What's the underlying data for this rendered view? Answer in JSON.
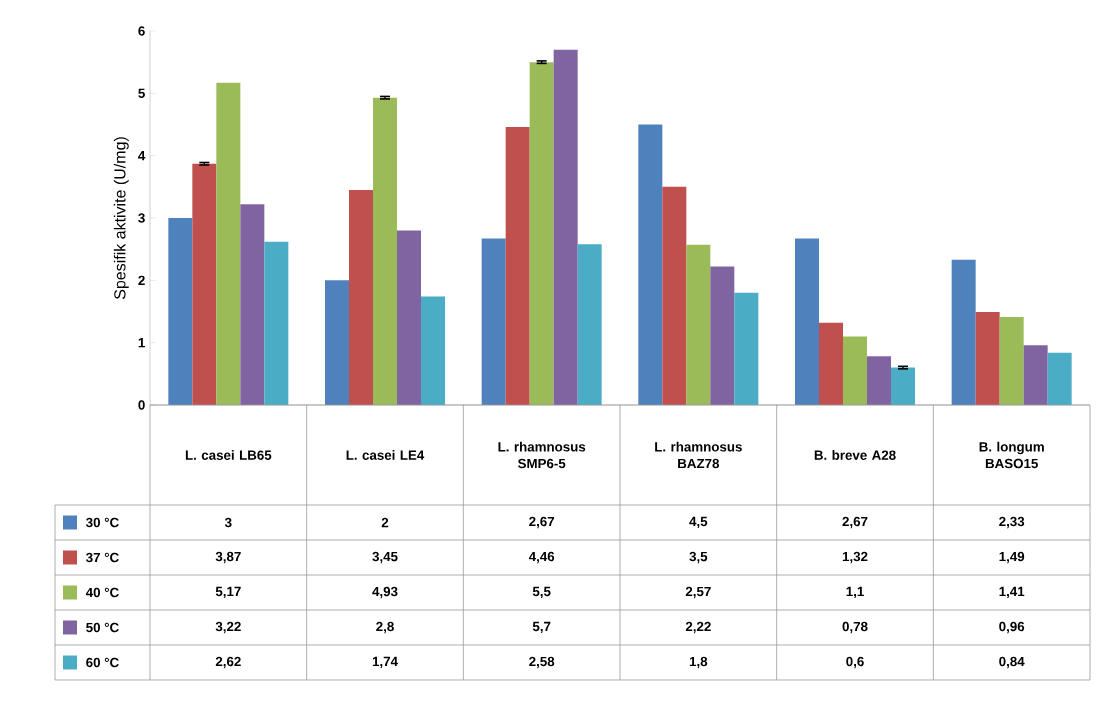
{
  "chart_data": {
    "type": "bar",
    "legend": "bottom",
    "ylabel": "Spesifik aktivite (U/mg)",
    "categories": [
      "L. casei LB65",
      "L. casei LE4",
      "L. rhamnosus SMP6-5",
      "L. rhamnosus BAZ78",
      "B. breve A28",
      "B. longum BASO15"
    ],
    "ylim": [
      0,
      6
    ],
    "yticks": [
      0,
      1,
      2,
      3,
      4,
      5,
      6
    ],
    "series": [
      {
        "name": "30 °C",
        "color": "#4f81bd",
        "values": [
          3,
          2,
          2.67,
          4.5,
          2.67,
          2.33
        ],
        "value_labels": [
          "3",
          "2",
          "2,67",
          "4,5",
          "2,67",
          "2,33"
        ]
      },
      {
        "name": "37 °C",
        "color": "#c0504d",
        "values": [
          3.87,
          3.45,
          4.46,
          3.5,
          1.32,
          1.49
        ],
        "value_labels": [
          "3,87",
          "3,45",
          "4,46",
          "3,5",
          "1,32",
          "1,49"
        ],
        "errors": [
          0.02,
          null,
          null,
          null,
          null,
          null
        ]
      },
      {
        "name": "40 °C",
        "color": "#9bbb59",
        "values": [
          5.17,
          4.93,
          5.5,
          2.57,
          1.1,
          1.41
        ],
        "value_labels": [
          "5,17",
          "4,93",
          "5,5",
          "2,57",
          "1,1",
          "1,41"
        ],
        "errors": [
          null,
          0.02,
          0.02,
          null,
          null,
          null
        ]
      },
      {
        "name": "50 °C",
        "color": "#8064a2",
        "values": [
          3.22,
          2.8,
          5.7,
          2.22,
          0.78,
          0.96
        ],
        "value_labels": [
          "3,22",
          "2,8",
          "5,7",
          "2,22",
          "0,78",
          "0,96"
        ]
      },
      {
        "name": "60 °C",
        "color": "#4bacc6",
        "values": [
          2.62,
          1.74,
          2.58,
          1.8,
          0.6,
          0.84
        ],
        "value_labels": [
          "2,62",
          "1,74",
          "2,58",
          "1,8",
          "0,6",
          "0,84"
        ],
        "errors": [
          null,
          null,
          null,
          null,
          0.02,
          null
        ]
      }
    ]
  }
}
